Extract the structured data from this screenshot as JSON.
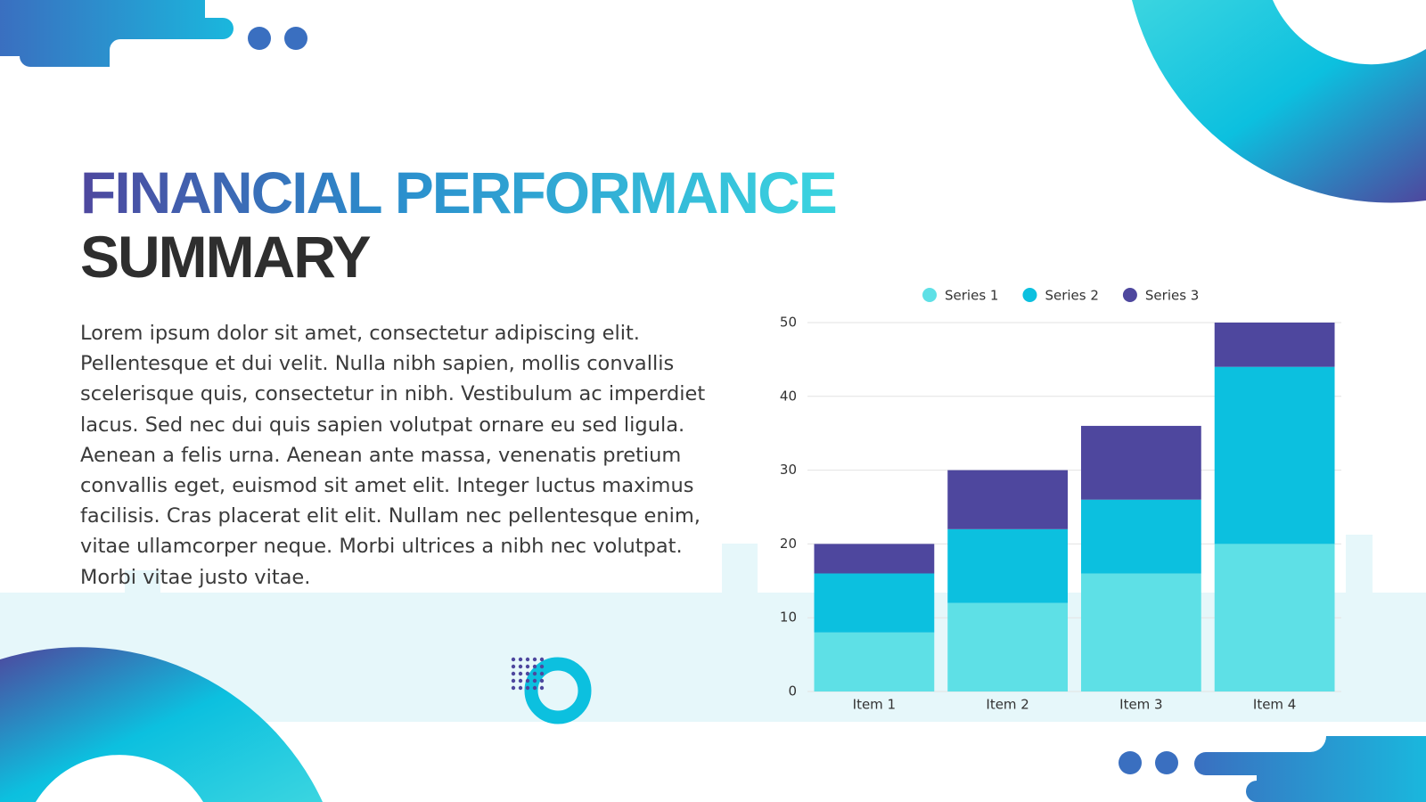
{
  "header": {
    "title_line1": "FINANCIAL PERFORMANCE",
    "title_line2": "SUMMARY"
  },
  "body": {
    "paragraph": "Lorem ipsum dolor sit amet, consectetur adipiscing elit. Pellentesque et dui velit. Nulla nibh sapien, mollis convallis scelerisque quis, consectetur in nibh. Vestibulum ac imperdiet lacus. Sed nec dui quis sapien volutpat ornare eu sed ligula. Aenean a felis urna. Aenean ante massa, venenatis pretium convallis eget, euismod sit amet elit. Integer luctus maximus facilisis. Cras placerat elit elit. Nullam nec pellentesque enim, vitae ullamcorper neque. Morbi ultrices a nibh nec volutpat. Morbi vitae justo vitae."
  },
  "chart_data": {
    "type": "stacked_bar",
    "categories": [
      "Item 1",
      "Item 2",
      "Item 3",
      "Item 4"
    ],
    "series": [
      {
        "name": "Series 1",
        "color": "#5ee0e6",
        "values": [
          8,
          12,
          16,
          20
        ]
      },
      {
        "name": "Series 2",
        "color": "#0cc0df",
        "values": [
          8,
          10,
          10,
          24
        ]
      },
      {
        "name": "Series 3",
        "color": "#4e479e",
        "values": [
          4,
          8,
          10,
          6
        ]
      }
    ],
    "ylim": [
      0,
      50
    ],
    "yticks": [
      0,
      10,
      20,
      30,
      40,
      50
    ],
    "grid": true,
    "legend": "top"
  }
}
